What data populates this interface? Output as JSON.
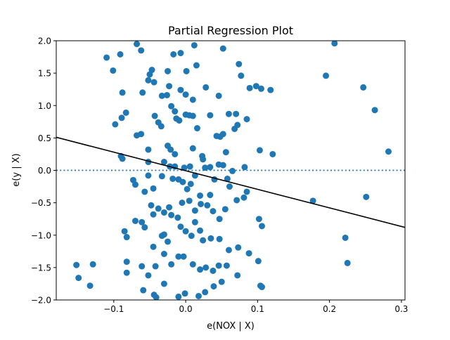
{
  "chart_data": {
    "type": "scatter",
    "title": "Partial Regression Plot",
    "xlabel": "e(NOX | X)",
    "ylabel": "e(y | X)",
    "xlim": [
      -0.18,
      0.305
    ],
    "ylim": [
      -2.0,
      2.0
    ],
    "xticks": [
      -0.1,
      0.0,
      0.1,
      0.2,
      0.3
    ],
    "xtick_labels": [
      "−0.1",
      "0.0",
      "0.1",
      "0.2",
      "0.3"
    ],
    "yticks": [
      -2.0,
      -1.5,
      -1.0,
      -0.5,
      0.0,
      0.5,
      1.0,
      1.5,
      2.0
    ],
    "ytick_labels": [
      "−2.0",
      "−1.5",
      "−1.0",
      "−0.5",
      "0.0",
      "0.5",
      "1.0",
      "1.5",
      "2.0"
    ],
    "grid": false,
    "point_color": "#1f77b4",
    "fit_line": {
      "x": [
        -0.18,
        0.305
      ],
      "y": [
        0.51,
        -0.88
      ],
      "color": "#000000"
    },
    "zero_line": {
      "y": 0.0,
      "style": "dotted",
      "color": "#1f77b4"
    },
    "points": [
      [
        -0.11,
        1.74
      ],
      [
        -0.101,
        1.54
      ],
      [
        -0.091,
        1.79
      ],
      [
        -0.068,
        1.95
      ],
      [
        -0.062,
        1.85
      ],
      [
        -0.047,
        1.55
      ],
      [
        -0.05,
        1.48
      ],
      [
        -0.052,
        1.39
      ],
      [
        -0.044,
        1.36
      ],
      [
        -0.025,
        1.53
      ],
      [
        -0.017,
        1.79
      ],
      [
        -0.007,
        1.81
      ],
      [
        0.001,
        1.53
      ],
      [
        0.015,
        1.62
      ],
      [
        0.012,
        1.93
      ],
      [
        0.052,
        1.88
      ],
      [
        0.074,
        1.64
      ],
      [
        0.077,
        1.46
      ],
      [
        0.089,
        1.27
      ],
      [
        0.098,
        1.3
      ],
      [
        0.105,
        1.26
      ],
      [
        0.118,
        1.24
      ],
      [
        0.207,
        1.96
      ],
      [
        0.195,
        1.46
      ],
      [
        0.247,
        1.28
      ],
      [
        0.263,
        0.93
      ],
      [
        -0.088,
        1.2
      ],
      [
        -0.06,
        1.2
      ],
      [
        -0.033,
        1.15
      ],
      [
        -0.026,
        1.16
      ],
      [
        -0.023,
        1.3
      ],
      [
        -0.007,
        1.24
      ],
      [
        0.0,
        1.17
      ],
      [
        0.01,
        1.09
      ],
      [
        0.028,
        1.28
      ],
      [
        0.046,
        1.15
      ],
      [
        -0.098,
        0.71
      ],
      [
        -0.089,
        0.81
      ],
      [
        -0.083,
        0.89
      ],
      [
        -0.068,
        0.54
      ],
      [
        -0.062,
        0.56
      ],
      [
        -0.043,
        0.84
      ],
      [
        -0.038,
        0.74
      ],
      [
        -0.034,
        0.68
      ],
      [
        -0.02,
        0.99
      ],
      [
        -0.015,
        0.91
      ],
      [
        -0.013,
        0.8
      ],
      [
        -0.009,
        0.77
      ],
      [
        0.0,
        0.86
      ],
      [
        0.005,
        0.85
      ],
      [
        0.01,
        0.84
      ],
      [
        0.016,
        0.65
      ],
      [
        0.034,
        0.85
      ],
      [
        0.048,
        0.52
      ],
      [
        0.052,
        0.56
      ],
      [
        0.06,
        0.87
      ],
      [
        0.07,
        0.87
      ],
      [
        0.068,
        0.64
      ],
      [
        0.072,
        0.7
      ],
      [
        0.085,
        0.79
      ],
      [
        -0.052,
        0.32
      ],
      [
        -0.025,
        0.38
      ],
      [
        -0.021,
        0.32
      ],
      [
        -0.015,
        0.25
      ],
      [
        0.01,
        0.34
      ],
      [
        0.023,
        0.22
      ],
      [
        0.024,
        0.17
      ],
      [
        0.043,
        0.53
      ],
      [
        0.056,
        0.28
      ],
      [
        0.103,
        0.31
      ],
      [
        0.121,
        0.25
      ],
      [
        0.282,
        0.29
      ],
      [
        -0.09,
        0.22
      ],
      [
        -0.088,
        0.18
      ],
      [
        -0.052,
        0.13
      ],
      [
        -0.03,
        0.13
      ],
      [
        -0.022,
        0.06
      ],
      [
        -0.015,
        0.06
      ],
      [
        -0.002,
        0.04
      ],
      [
        0.006,
        0.06
      ],
      [
        0.027,
        0.04
      ],
      [
        0.034,
        0.05
      ],
      [
        0.046,
        0.09
      ],
      [
        0.052,
        0.08
      ],
      [
        0.065,
        -0.01
      ],
      [
        0.082,
        0.05
      ],
      [
        -0.052,
        -0.08
      ],
      [
        -0.073,
        -0.15
      ],
      [
        -0.07,
        -0.22
      ],
      [
        -0.057,
        -0.33
      ],
      [
        -0.045,
        -0.28
      ],
      [
        -0.033,
        -0.09
      ],
      [
        -0.018,
        -0.13
      ],
      [
        -0.01,
        -0.14
      ],
      [
        -0.004,
        -0.18
      ],
      [
        0.002,
        -0.29
      ],
      [
        0.007,
        -0.21
      ],
      [
        0.013,
        -0.08
      ],
      [
        0.02,
        -0.39
      ],
      [
        0.034,
        -0.38
      ],
      [
        0.04,
        -0.14
      ],
      [
        0.058,
        -0.13
      ],
      [
        0.061,
        -0.25
      ],
      [
        0.085,
        -0.33
      ],
      [
        0.177,
        -0.47
      ],
      [
        0.251,
        -0.41
      ],
      [
        -0.07,
        -0.78
      ],
      [
        -0.061,
        -0.8
      ],
      [
        -0.048,
        -0.54
      ],
      [
        -0.045,
        -0.68
      ],
      [
        -0.038,
        -0.59
      ],
      [
        -0.03,
        -0.65
      ],
      [
        -0.023,
        -0.57
      ],
      [
        -0.02,
        -0.69
      ],
      [
        -0.011,
        -0.73
      ],
      [
        -0.005,
        -0.5
      ],
      [
        0.005,
        -0.47
      ],
      [
        0.013,
        -0.62
      ],
      [
        0.021,
        -0.52
      ],
      [
        0.03,
        -0.54
      ],
      [
        0.038,
        -0.63
      ],
      [
        0.047,
        -0.75
      ],
      [
        0.055,
        -0.6
      ],
      [
        0.071,
        -0.46
      ],
      [
        0.081,
        -0.42
      ],
      [
        0.102,
        -0.75
      ],
      [
        0.106,
        -0.86
      ],
      [
        -0.085,
        -0.94
      ],
      [
        -0.082,
        -1.03
      ],
      [
        -0.057,
        -0.88
      ],
      [
        -0.045,
        -1.18
      ],
      [
        -0.033,
        -1.01
      ],
      [
        -0.03,
        -0.99
      ],
      [
        -0.025,
        -1.1
      ],
      [
        -0.007,
        -0.87
      ],
      [
        0.0,
        -0.94
      ],
      [
        0.008,
        -1.01
      ],
      [
        0.013,
        -0.8
      ],
      [
        0.02,
        -0.93
      ],
      [
        0.024,
        -1.08
      ],
      [
        0.035,
        -1.05
      ],
      [
        0.047,
        -1.06
      ],
      [
        0.06,
        -1.23
      ],
      [
        0.073,
        -1.19
      ],
      [
        0.088,
        -1.28
      ],
      [
        0.222,
        -1.04
      ],
      [
        -0.082,
        -1.41
      ],
      [
        -0.082,
        -1.58
      ],
      [
        -0.061,
        -1.48
      ],
      [
        -0.052,
        -1.62
      ],
      [
        -0.042,
        -1.48
      ],
      [
        -0.03,
        -1.29
      ],
      [
        -0.02,
        -1.45
      ],
      [
        -0.01,
        -1.33
      ],
      [
        -0.003,
        -1.33
      ],
      [
        0.01,
        -1.45
      ],
      [
        0.02,
        -1.53
      ],
      [
        0.028,
        -1.5
      ],
      [
        0.038,
        -1.55
      ],
      [
        0.046,
        -1.47
      ],
      [
        0.057,
        -1.47
      ],
      [
        0.072,
        -1.62
      ],
      [
        0.101,
        -1.4
      ],
      [
        0.104,
        -1.78
      ],
      [
        0.225,
        -1.43
      ],
      [
        -0.152,
        -1.46
      ],
      [
        -0.149,
        -1.66
      ],
      [
        -0.133,
        -1.78
      ],
      [
        -0.129,
        -1.45
      ],
      [
        -0.059,
        -1.85
      ],
      [
        -0.044,
        -1.92
      ],
      [
        -0.041,
        -1.96
      ],
      [
        -0.03,
        -1.75
      ],
      [
        -0.01,
        -1.95
      ],
      [
        -0.001,
        -1.9
      ],
      [
        0.018,
        -1.94
      ],
      [
        0.027,
        -1.88
      ],
      [
        0.039,
        -1.79
      ],
      [
        0.05,
        -1.72
      ],
      [
        0.106,
        -1.8
      ]
    ]
  }
}
